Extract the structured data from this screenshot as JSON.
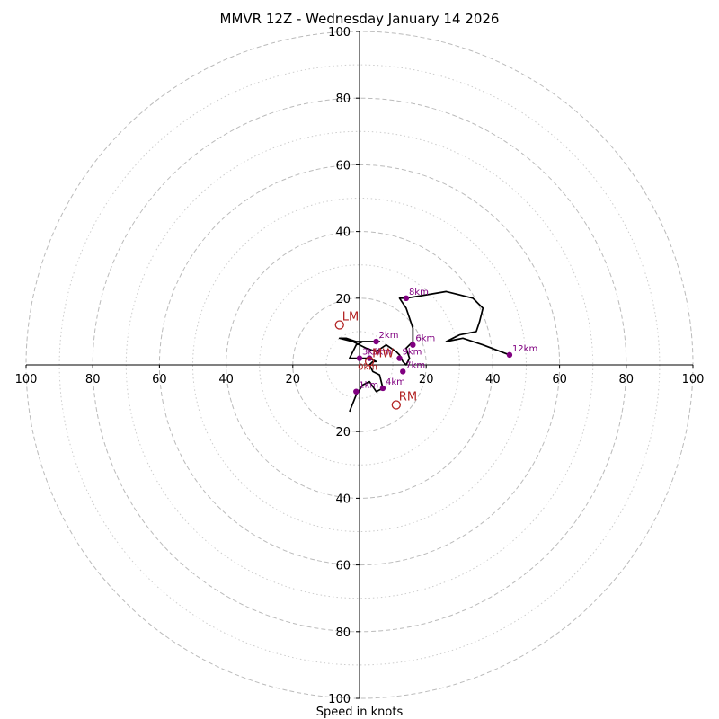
{
  "chart_data": {
    "type": "hodograph",
    "title": "MMVR 12Z - Wednesday January 14 2026",
    "xlabel": "Speed in knots",
    "rlim": [
      0,
      100
    ],
    "ring_major": [
      20,
      40,
      60,
      80,
      100
    ],
    "ring_minor": [
      10,
      30,
      50,
      70,
      90
    ],
    "x_ticks": [
      "100",
      "80",
      "60",
      "40",
      "20",
      "20",
      "40",
      "60",
      "80",
      "100"
    ],
    "y_ticks": [
      "100",
      "80",
      "60",
      "40",
      "20",
      "20",
      "40",
      "60",
      "80",
      "100"
    ],
    "colors": {
      "trace": "#000000",
      "height_marker": "#800080",
      "motion": "#b22222",
      "grid": "#bbbbbb"
    },
    "hodograph": [
      [
        -3,
        -14
      ],
      [
        -1,
        -9
      ],
      [
        1,
        -6
      ],
      [
        3,
        -5
      ],
      [
        5,
        -8
      ],
      [
        7,
        -7
      ],
      [
        6,
        -3
      ],
      [
        4,
        -2
      ],
      [
        3,
        0
      ],
      [
        4,
        1
      ],
      [
        5,
        1
      ],
      [
        3,
        2
      ],
      [
        0,
        2
      ],
      [
        -3,
        2
      ],
      [
        -2,
        4
      ],
      [
        -1,
        6
      ],
      [
        1,
        7
      ],
      [
        3,
        7
      ],
      [
        6,
        7
      ],
      [
        5,
        7
      ],
      [
        2,
        7
      ],
      [
        -1,
        7
      ],
      [
        -4,
        8
      ],
      [
        -6,
        8
      ],
      [
        -2,
        7
      ],
      [
        0,
        6
      ],
      [
        2,
        5
      ],
      [
        5,
        4
      ],
      [
        8,
        6
      ],
      [
        11,
        4
      ],
      [
        12,
        3
      ],
      [
        13,
        1
      ],
      [
        14,
        0
      ],
      [
        15,
        2
      ],
      [
        14,
        5
      ],
      [
        16,
        7
      ],
      [
        16,
        11
      ],
      [
        14,
        17
      ],
      [
        12,
        20
      ],
      [
        14,
        20
      ],
      [
        20,
        21
      ],
      [
        26,
        22
      ],
      [
        34,
        20
      ],
      [
        37,
        17
      ],
      [
        36,
        13
      ],
      [
        35,
        10
      ],
      [
        30,
        9
      ],
      [
        26,
        7
      ],
      [
        31,
        8
      ],
      [
        37,
        6
      ],
      [
        45,
        3
      ]
    ],
    "height_markers": [
      {
        "label": "1km",
        "u": -1,
        "v": -8
      },
      {
        "label": "2km",
        "u": 5,
        "v": 7
      },
      {
        "label": "3km",
        "u": 0,
        "v": 2
      },
      {
        "label": "4km",
        "u": 7,
        "v": -7
      },
      {
        "label": "5km",
        "u": 3,
        "v": 2
      },
      {
        "label": "6km",
        "u": 16,
        "v": 6
      },
      {
        "label": "7km",
        "u": 13,
        "v": -2
      },
      {
        "label": "8km",
        "u": 14,
        "v": 20
      },
      {
        "label": "9km",
        "u": 12,
        "v": 2
      },
      {
        "label": "12km",
        "u": 45,
        "v": 3
      }
    ],
    "storm_motion": [
      {
        "label": "LM",
        "u": -6,
        "v": 12
      },
      {
        "label": "RM",
        "u": 11,
        "v": -12
      },
      {
        "label": "MW",
        "u": 3,
        "v": 1
      }
    ],
    "surface_label": "0km"
  }
}
